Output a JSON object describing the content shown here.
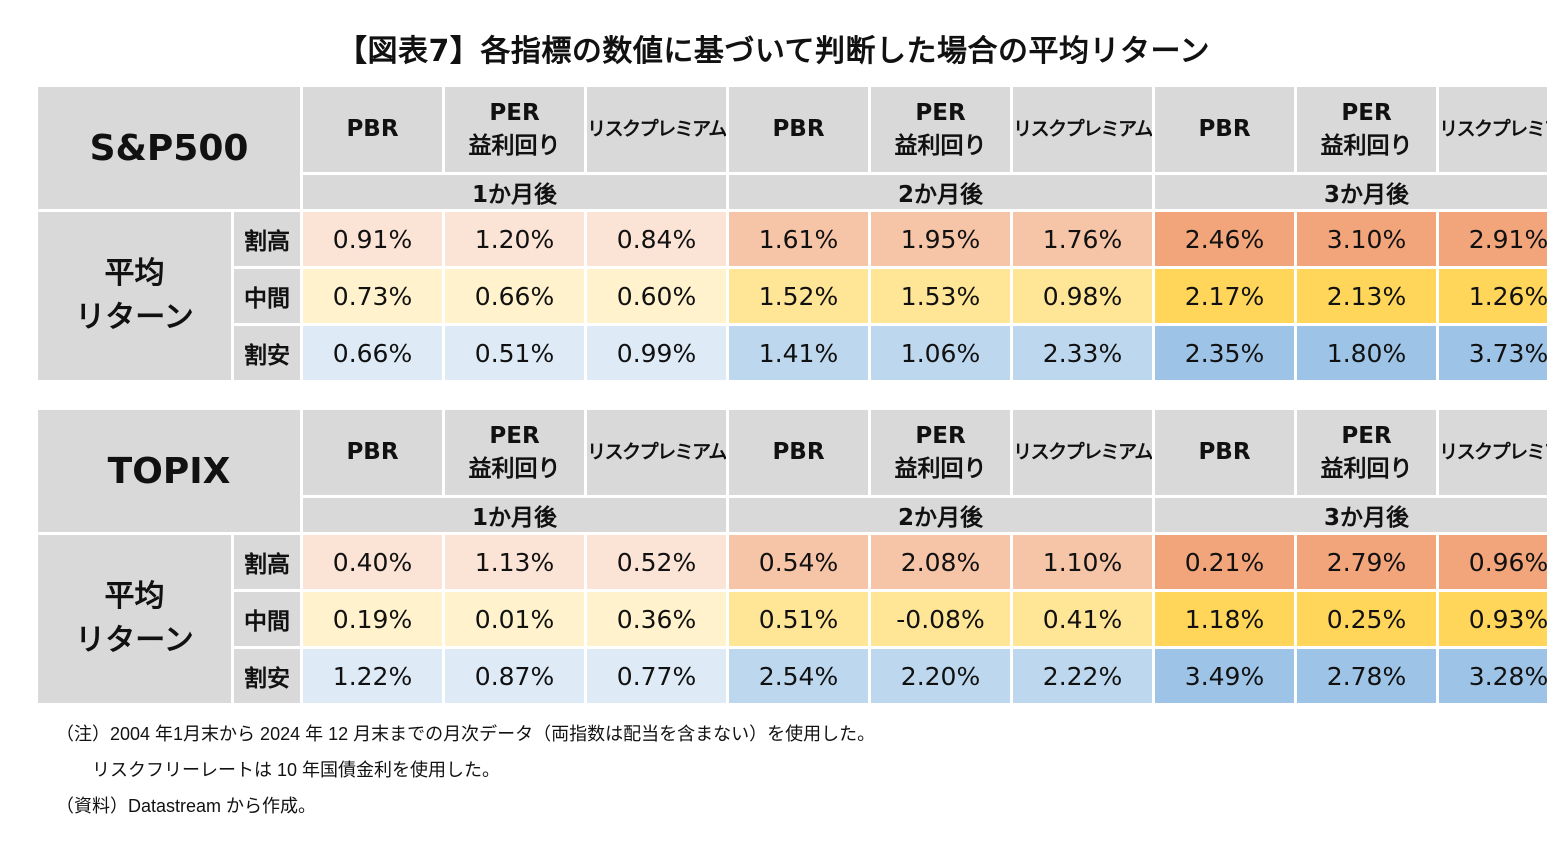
{
  "title": "【図表7】各指標の数値に基づいて判断した場合の平均リターン",
  "colors": {
    "header_bg": "#d9d9d9",
    "high": [
      "#fbe3d6",
      "#f6c4a7",
      "#f2a57b"
    ],
    "mid": [
      "#fff2cc",
      "#ffe596",
      "#ffd55a"
    ],
    "low": [
      "#deebf7",
      "#bdd7ee",
      "#9dc3e6"
    ]
  },
  "chart_data": [
    {
      "type": "table",
      "index_name": "S&P500",
      "periods": [
        "1か月後",
        "2か月後",
        "3か月後"
      ],
      "metrics": [
        "PBR",
        "PER\n益利回り",
        "リスクプレミアム"
      ],
      "row_group": "平均\nリターン",
      "rows": [
        {
          "label": "割高",
          "values": [
            "0.91%",
            "1.20%",
            "0.84%",
            "1.61%",
            "1.95%",
            "1.76%",
            "2.46%",
            "3.10%",
            "2.91%"
          ]
        },
        {
          "label": "中間",
          "values": [
            "0.73%",
            "0.66%",
            "0.60%",
            "1.52%",
            "1.53%",
            "0.98%",
            "2.17%",
            "2.13%",
            "1.26%"
          ]
        },
        {
          "label": "割安",
          "values": [
            "0.66%",
            "0.51%",
            "0.99%",
            "1.41%",
            "1.06%",
            "2.33%",
            "2.35%",
            "1.80%",
            "3.73%"
          ]
        }
      ]
    },
    {
      "type": "table",
      "index_name": "TOPIX",
      "periods": [
        "1か月後",
        "2か月後",
        "3か月後"
      ],
      "metrics": [
        "PBR",
        "PER\n益利回り",
        "リスクプレミアム"
      ],
      "row_group": "平均\nリターン",
      "rows": [
        {
          "label": "割高",
          "values": [
            "0.40%",
            "1.13%",
            "0.52%",
            "0.54%",
            "2.08%",
            "1.10%",
            "0.21%",
            "2.79%",
            "0.96%"
          ]
        },
        {
          "label": "中間",
          "values": [
            "0.19%",
            "0.01%",
            "0.36%",
            "0.51%",
            "-0.08%",
            "0.41%",
            "1.18%",
            "0.25%",
            "0.93%"
          ]
        },
        {
          "label": "割安",
          "values": [
            "1.22%",
            "0.87%",
            "0.77%",
            "2.54%",
            "2.20%",
            "2.22%",
            "3.49%",
            "2.78%",
            "3.28%"
          ]
        }
      ]
    }
  ],
  "notes": [
    "（注）2004 年1月末から 2024 年 12 月末までの月次データ（両指数は配当を含まない）を使用した。",
    "　　リスクフリーレートは 10 年国債金利を使用した。",
    "（資料）Datastream から作成。"
  ]
}
